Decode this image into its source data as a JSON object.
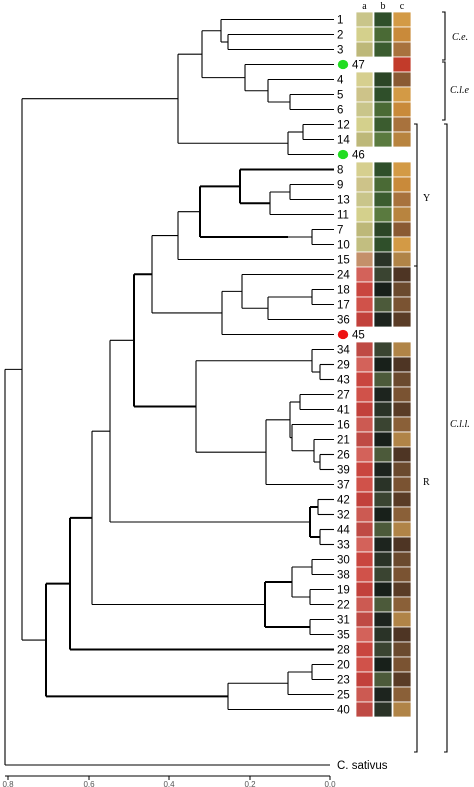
{
  "figure": {
    "columns": [
      "a",
      "b",
      "c"
    ],
    "leaves": [
      "1",
      "2",
      "3",
      "47",
      "4",
      "5",
      "6",
      "12",
      "14",
      "46",
      "8",
      "9",
      "13",
      "11",
      "7",
      "10",
      "15",
      "24",
      "18",
      "17",
      "36",
      "45",
      "34",
      "29",
      "43",
      "27",
      "41",
      "16",
      "21",
      "26",
      "39",
      "37",
      "42",
      "32",
      "44",
      "33",
      "30",
      "38",
      "19",
      "22",
      "31",
      "35",
      "28",
      "20",
      "23",
      "25",
      "40"
    ],
    "outgroup": "C. sativus",
    "highlighted": [
      {
        "leaf": "47",
        "color": "#22dd22"
      },
      {
        "leaf": "46",
        "color": "#22dd22"
      },
      {
        "leaf": "45",
        "color": "#ee1111"
      }
    ],
    "group_labels": {
      "ce": "C.e.",
      "cle": "C.l.e",
      "cll": "C.l.l.",
      "y": "Y",
      "r": "R"
    },
    "axis": {
      "ticks": [
        "0.8",
        "0.6",
        "0.4",
        "0.2",
        "0.0"
      ]
    },
    "colors": {
      "line": "#000000",
      "green_marker": "#22dd22",
      "red_marker": "#ee1111"
    }
  }
}
